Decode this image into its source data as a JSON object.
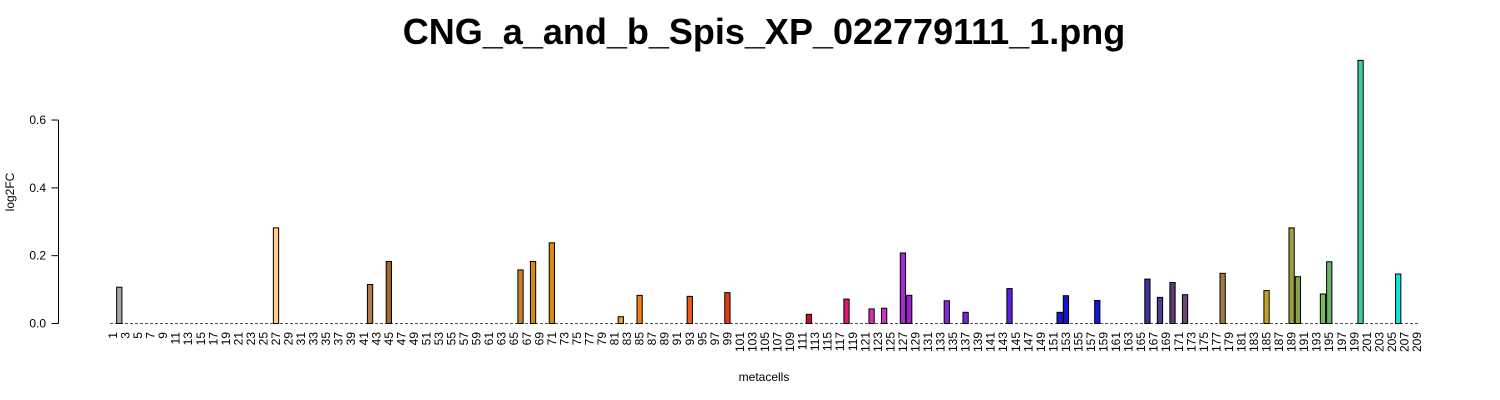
{
  "chart_data": {
    "type": "bar",
    "title": "CNG_a_and_b_Spis_XP_022779111_1.png",
    "xlabel": "metacells",
    "ylabel": "log2FC",
    "ylim": [
      0,
      0.78
    ],
    "yticks": [
      0.0,
      0.2,
      0.4,
      0.6
    ],
    "ytick_labels": [
      "0.0",
      "0.2",
      "0.4",
      "0.6"
    ],
    "n_categories": 209,
    "xtick_step": 2,
    "grid": false,
    "legend": "none",
    "baseline": "dashed",
    "bars": [
      {
        "x": 2,
        "value": 0.107,
        "color": "#a6a6a6"
      },
      {
        "x": 27,
        "value": 0.282,
        "color": "#ffcc8f"
      },
      {
        "x": 42,
        "value": 0.115,
        "color": "#b07a4e"
      },
      {
        "x": 45,
        "value": 0.183,
        "color": "#a5692f"
      },
      {
        "x": 66,
        "value": 0.158,
        "color": "#c9802b"
      },
      {
        "x": 68,
        "value": 0.183,
        "color": "#d48a14"
      },
      {
        "x": 71,
        "value": 0.238,
        "color": "#de8a0e"
      },
      {
        "x": 82,
        "value": 0.02,
        "color": "#f59e1b"
      },
      {
        "x": 85,
        "value": 0.083,
        "color": "#f07d1a"
      },
      {
        "x": 93,
        "value": 0.08,
        "color": "#ec5b1a"
      },
      {
        "x": 99,
        "value": 0.091,
        "color": "#e13b10"
      },
      {
        "x": 112,
        "value": 0.027,
        "color": "#cc0a23"
      },
      {
        "x": 118,
        "value": 0.072,
        "color": "#dd1672"
      },
      {
        "x": 122,
        "value": 0.043,
        "color": "#d92eb0"
      },
      {
        "x": 124,
        "value": 0.045,
        "color": "#d22fc9"
      },
      {
        "x": 127,
        "value": 0.208,
        "color": "#a32dcc"
      },
      {
        "x": 128,
        "value": 0.083,
        "color": "#9b22cf"
      },
      {
        "x": 134,
        "value": 0.067,
        "color": "#8829d9"
      },
      {
        "x": 137,
        "value": 0.033,
        "color": "#7a27e3"
      },
      {
        "x": 144,
        "value": 0.103,
        "color": "#5a1fe0"
      },
      {
        "x": 152,
        "value": 0.033,
        "color": "#1f18d6"
      },
      {
        "x": 153,
        "value": 0.082,
        "color": "#1414d9"
      },
      {
        "x": 158,
        "value": 0.068,
        "color": "#1219d2"
      },
      {
        "x": 166,
        "value": 0.131,
        "color": "#3a3296"
      },
      {
        "x": 168,
        "value": 0.077,
        "color": "#4e3f8c"
      },
      {
        "x": 170,
        "value": 0.121,
        "color": "#5a3a76"
      },
      {
        "x": 172,
        "value": 0.085,
        "color": "#6a4a70"
      },
      {
        "x": 178,
        "value": 0.148,
        "color": "#9e7a45"
      },
      {
        "x": 185,
        "value": 0.097,
        "color": "#c4a126"
      },
      {
        "x": 189,
        "value": 0.282,
        "color": "#9e9f45"
      },
      {
        "x": 190,
        "value": 0.138,
        "color": "#8aa543"
      },
      {
        "x": 194,
        "value": 0.087,
        "color": "#7db85c"
      },
      {
        "x": 195,
        "value": 0.182,
        "color": "#64b46b"
      },
      {
        "x": 200,
        "value": 0.776,
        "color": "#3ccc9e"
      },
      {
        "x": 206,
        "value": 0.146,
        "color": "#14e5dc"
      }
    ]
  }
}
